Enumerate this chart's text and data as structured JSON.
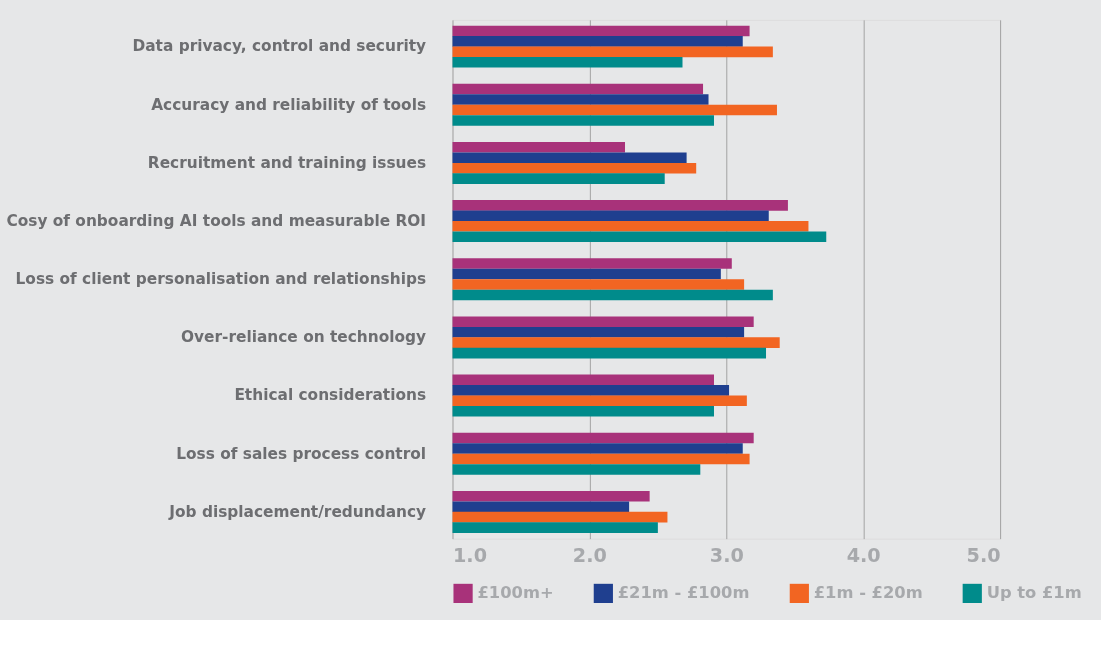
{
  "chart_data": {
    "type": "bar",
    "orientation": "horizontal",
    "categories": [
      "Data privacy, control and security",
      "Accuracy and reliability of tools",
      "Recruitment and training issues",
      "Cosy of onboarding AI tools and measurable ROI",
      "Loss of client personalisation and relationships",
      "Over-reliance on technology",
      "Ethical considerations",
      "Loss of sales process control",
      "Job displacement/redundancy"
    ],
    "series": [
      {
        "name": "£100m+",
        "color": "#a8327a",
        "values": [
          3.17,
          2.83,
          2.26,
          3.45,
          3.04,
          3.2,
          2.91,
          3.2,
          2.44
        ]
      },
      {
        "name": "£21m - £100m",
        "color": "#1f3f8f",
        "values": [
          3.12,
          2.87,
          2.71,
          3.31,
          2.96,
          3.13,
          3.02,
          3.12,
          2.29
        ]
      },
      {
        "name": "£1m - £20m",
        "color": "#f26522",
        "values": [
          3.34,
          3.37,
          2.78,
          3.6,
          3.13,
          3.39,
          3.15,
          3.17,
          2.57
        ]
      },
      {
        "name": "Up to £1m",
        "color": "#008b8b",
        "values": [
          2.68,
          2.91,
          2.55,
          3.73,
          3.34,
          3.29,
          2.91,
          2.81,
          2.5
        ]
      }
    ],
    "xlim": [
      1.0,
      5.0
    ],
    "xticks": [
      {
        "value": 1,
        "label": "1.0"
      },
      {
        "value": 2,
        "label": "2.0"
      },
      {
        "value": 3,
        "label": "3.0"
      },
      {
        "value": 4,
        "label": "4.0"
      },
      {
        "value": 5,
        "label": "5.0"
      }
    ],
    "grid": "x",
    "legend": "bottom"
  }
}
